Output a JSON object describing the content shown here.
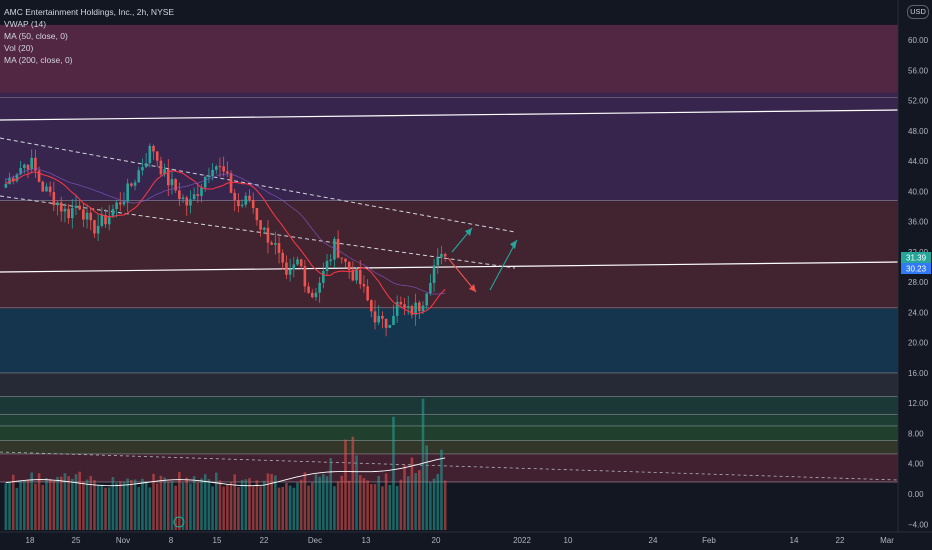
{
  "legend": {
    "symbol": "AMC Entertainment Holdings, Inc., 2h, NYSE",
    "vwap": "VWAP (14)",
    "ma50": "MA (50, close, 0)",
    "vol": "Vol (20)",
    "ma200": "MA (200, close, 0)"
  },
  "currency_button": "USD",
  "price_tags": {
    "last": "31.39",
    "vwap": "30.23"
  },
  "colors": {
    "background": "#131722",
    "up": "#26a69a",
    "down": "#ef5350",
    "ma": "#f23645",
    "vwap": "#3179f5"
  },
  "chart_data": {
    "type": "candlestick",
    "title": "AMC Entertainment Holdings, Inc., 2h, NYSE",
    "y_axis_ticks": [
      "60.00",
      "56.00",
      "52.00",
      "48.00",
      "44.00",
      "40.00",
      "36.00",
      "32.00",
      "28.00",
      "24.00",
      "20.00",
      "16.00",
      "12.00",
      "8.00",
      "4.00",
      "0.00",
      "−4.00"
    ],
    "x_axis_ticks": [
      "18",
      "25",
      "Nov",
      "8",
      "15",
      "22",
      "Dec",
      "13",
      "20",
      "2022",
      "10",
      "24",
      "Feb",
      "14",
      "22",
      "Mar"
    ],
    "ylim": [
      -5.5,
      63
    ],
    "grid": false,
    "ohlc_path": [
      41,
      43,
      44,
      40.5,
      39,
      37,
      38.5,
      35,
      36,
      38,
      40,
      43,
      46,
      42,
      40,
      38,
      41,
      44,
      42,
      38,
      39,
      35,
      33,
      28,
      31,
      26,
      29,
      33,
      30,
      28,
      24,
      22,
      25,
      24,
      25,
      30,
      31.39
    ],
    "zones": [
      {
        "from": 53,
        "to": 62,
        "color": "#5e2a4a"
      },
      {
        "from": 38.7,
        "to": 53,
        "color": "#3e2855"
      },
      {
        "from": 24.5,
        "to": 38.7,
        "color": "#4b2632"
      },
      {
        "from": 16,
        "to": 24.5,
        "color": "#163a55"
      },
      {
        "from": 12.9,
        "to": 16,
        "color": "#2a2e39"
      },
      {
        "from": 10.4,
        "to": 12.9,
        "color": "#1f3e3a"
      },
      {
        "from": 9,
        "to": 10.4,
        "color": "#204636"
      },
      {
        "from": 7,
        "to": 9,
        "color": "#25472f"
      },
      {
        "from": 5.3,
        "to": 7,
        "color": "#3a3d2c"
      },
      {
        "from": 1.5,
        "to": 5.3,
        "color": "#4a2232"
      }
    ],
    "horizontal_lines": [
      52.4,
      38.8,
      24.6,
      16.0,
      12.9,
      10.5,
      9.0,
      7.1,
      5.3,
      1.6
    ],
    "volume_scale": 12
  }
}
